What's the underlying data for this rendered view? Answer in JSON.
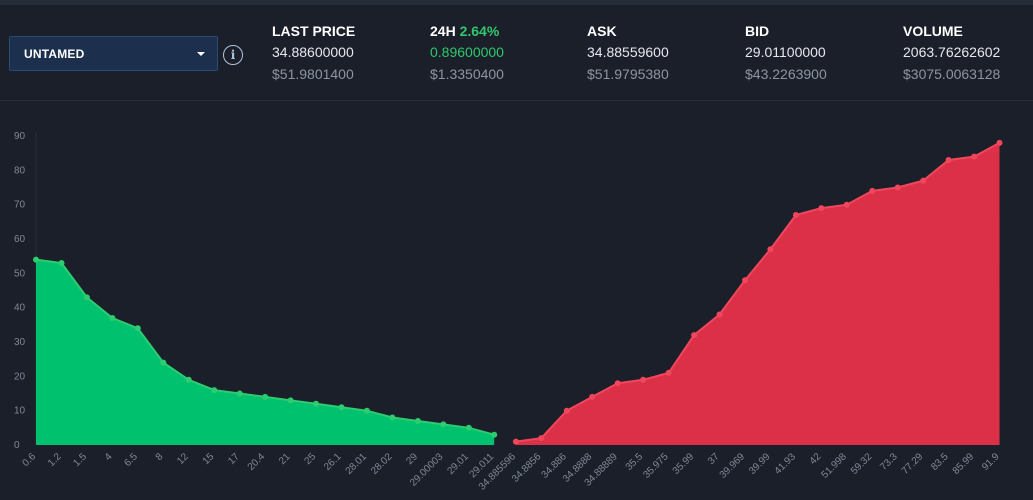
{
  "market": {
    "selected": "UNTAMED"
  },
  "stats": {
    "last_price": {
      "title": "LAST PRICE",
      "value": "34.88600000",
      "usd": "$51.9801400"
    },
    "change_24h": {
      "title": "24H",
      "percent": "2.64%",
      "value": "0.89600000",
      "usd": "$1.3350400"
    },
    "ask": {
      "title": "ASK",
      "value": "34.88559600",
      "usd": "$51.9795380"
    },
    "bid": {
      "title": "BID",
      "value": "29.01100000",
      "usd": "$43.2263900"
    },
    "volume": {
      "title": "VOLUME",
      "value": "2063.76262602",
      "usd": "$3075.0063128"
    }
  },
  "colors": {
    "bid_fill": "#00c16e",
    "bid_line": "#2ecc71",
    "ask_fill": "#dc3049",
    "ask_line": "#f0475c",
    "grid": "#2a2f3b",
    "axis_text": "#7f8796"
  },
  "chart_data": {
    "type": "area",
    "title": "",
    "xlabel": "",
    "ylabel": "",
    "ylim": [
      0,
      90
    ],
    "yticks": [
      0,
      10,
      20,
      30,
      40,
      50,
      60,
      70,
      80,
      90
    ],
    "grid": false,
    "series": [
      {
        "side": "bid",
        "x": [
          "0.6",
          "1.2",
          "1.5",
          "4",
          "6.5",
          "8",
          "12",
          "15",
          "17",
          "20.4",
          "21",
          "25",
          "26.1",
          "28.01",
          "28.02",
          "29",
          "29.00003",
          "29.01",
          "29.011"
        ],
        "values": [
          54,
          53,
          43,
          37,
          34,
          24,
          19,
          16,
          15,
          14,
          13,
          12,
          11,
          10,
          8,
          7,
          6,
          5,
          3
        ]
      },
      {
        "side": "ask",
        "x": [
          "34.885596",
          "34.8856",
          "34.886",
          "34.8888",
          "34.88889",
          "35.5",
          "35.975",
          "35.99",
          "37",
          "39.969",
          "39.99",
          "41.93",
          "42",
          "51.998",
          "59.32",
          "73.3",
          "77.29",
          "83.5",
          "85.99",
          "91.9"
        ],
        "values": [
          1,
          2,
          10,
          14,
          18,
          19,
          21,
          32,
          38,
          48,
          57,
          67,
          69,
          70,
          74,
          75,
          77,
          83,
          84,
          88
        ]
      }
    ]
  }
}
